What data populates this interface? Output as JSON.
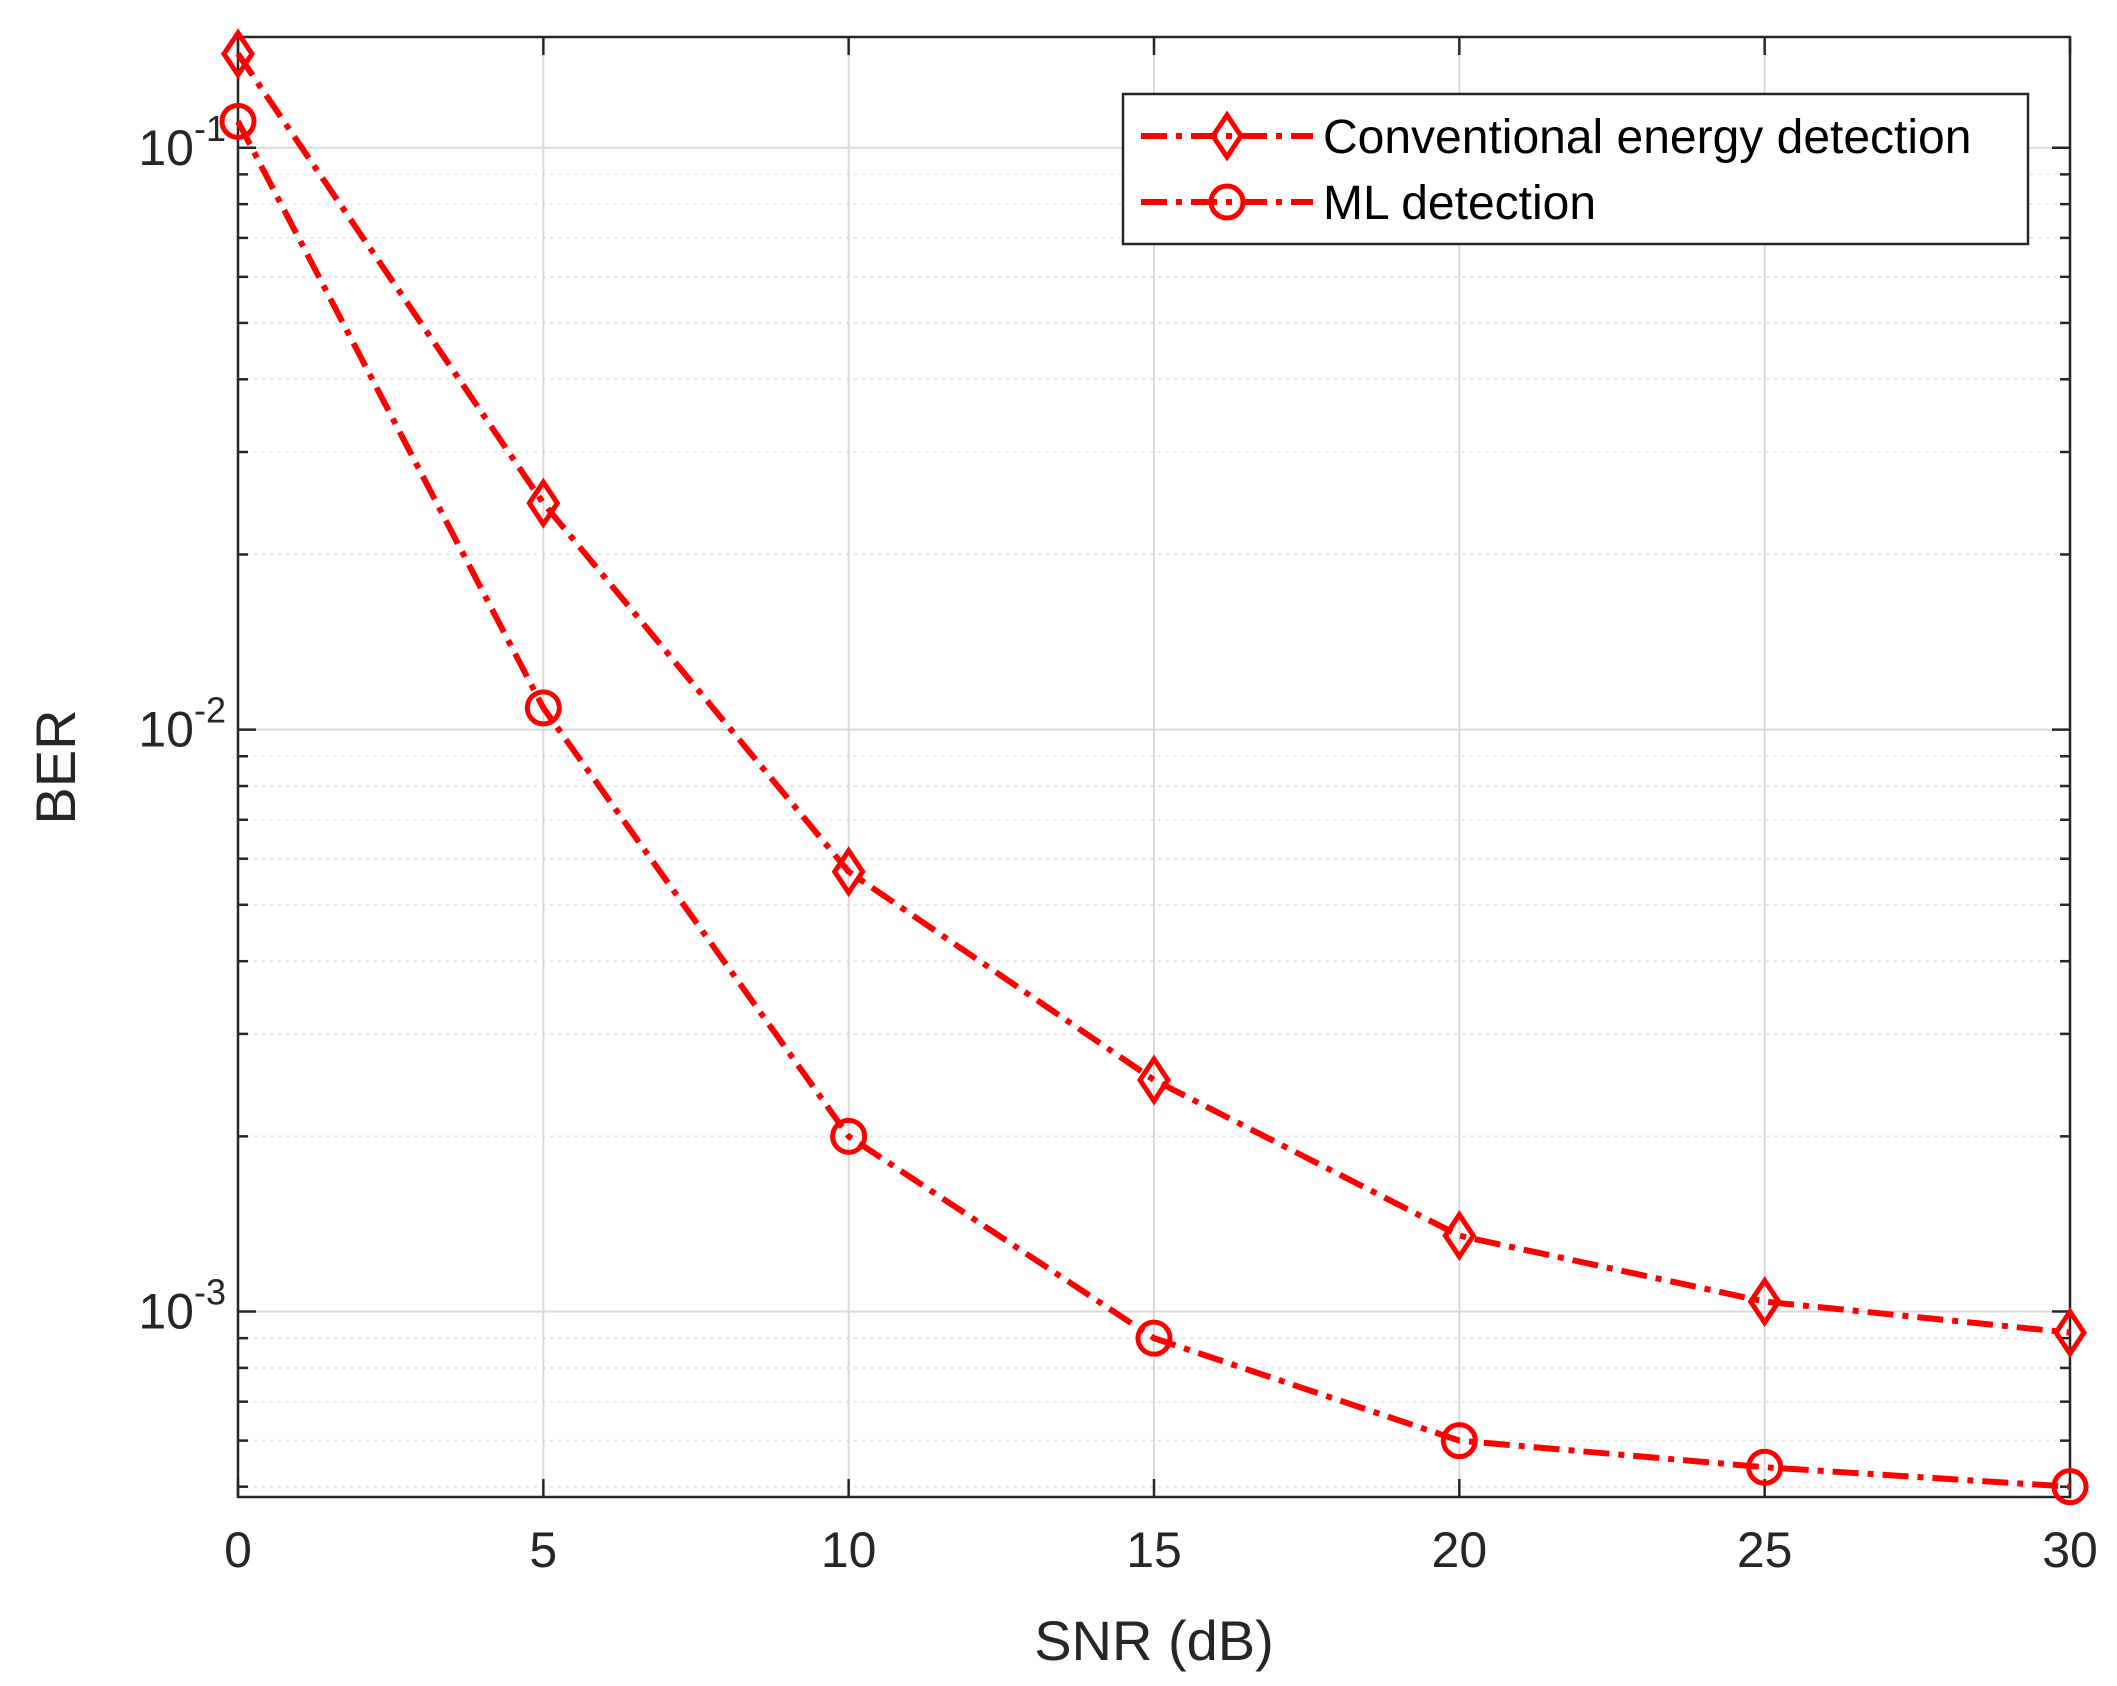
{
  "chart_data": {
    "type": "line",
    "title": "",
    "xlabel": "SNR (dB)",
    "ylabel": "BER",
    "yscale": "log",
    "x": [
      0,
      5,
      10,
      15,
      20,
      25,
      30
    ],
    "xlim": [
      0,
      30
    ],
    "ylim": [
      0.00048,
      0.155
    ],
    "xticks": [
      0,
      5,
      10,
      15,
      20,
      25,
      30
    ],
    "xtick_labels": [
      "0",
      "5",
      "10",
      "15",
      "20",
      "25",
      "30"
    ],
    "yticks": [
      {
        "value": 0.1,
        "base": "10",
        "exponent": "-1"
      },
      {
        "value": 0.01,
        "base": "10",
        "exponent": "-2"
      },
      {
        "value": 0.001,
        "base": "10",
        "exponent": "-3"
      }
    ],
    "grid": true,
    "legend_position": "top-right",
    "series": [
      {
        "name": "Conventional energy detection",
        "marker": "diamond",
        "color": "#ff0000",
        "line_style": "dash-dot",
        "values": [
          0.145,
          0.0245,
          0.0057,
          0.0025,
          0.00135,
          0.00104,
          0.00092
        ]
      },
      {
        "name": "ML detection",
        "marker": "circle",
        "color": "#ff0000",
        "line_style": "dash-dot",
        "values": [
          0.111,
          0.0109,
          0.002,
          0.0009,
          0.0006,
          0.00054,
          0.0005
        ]
      }
    ]
  }
}
